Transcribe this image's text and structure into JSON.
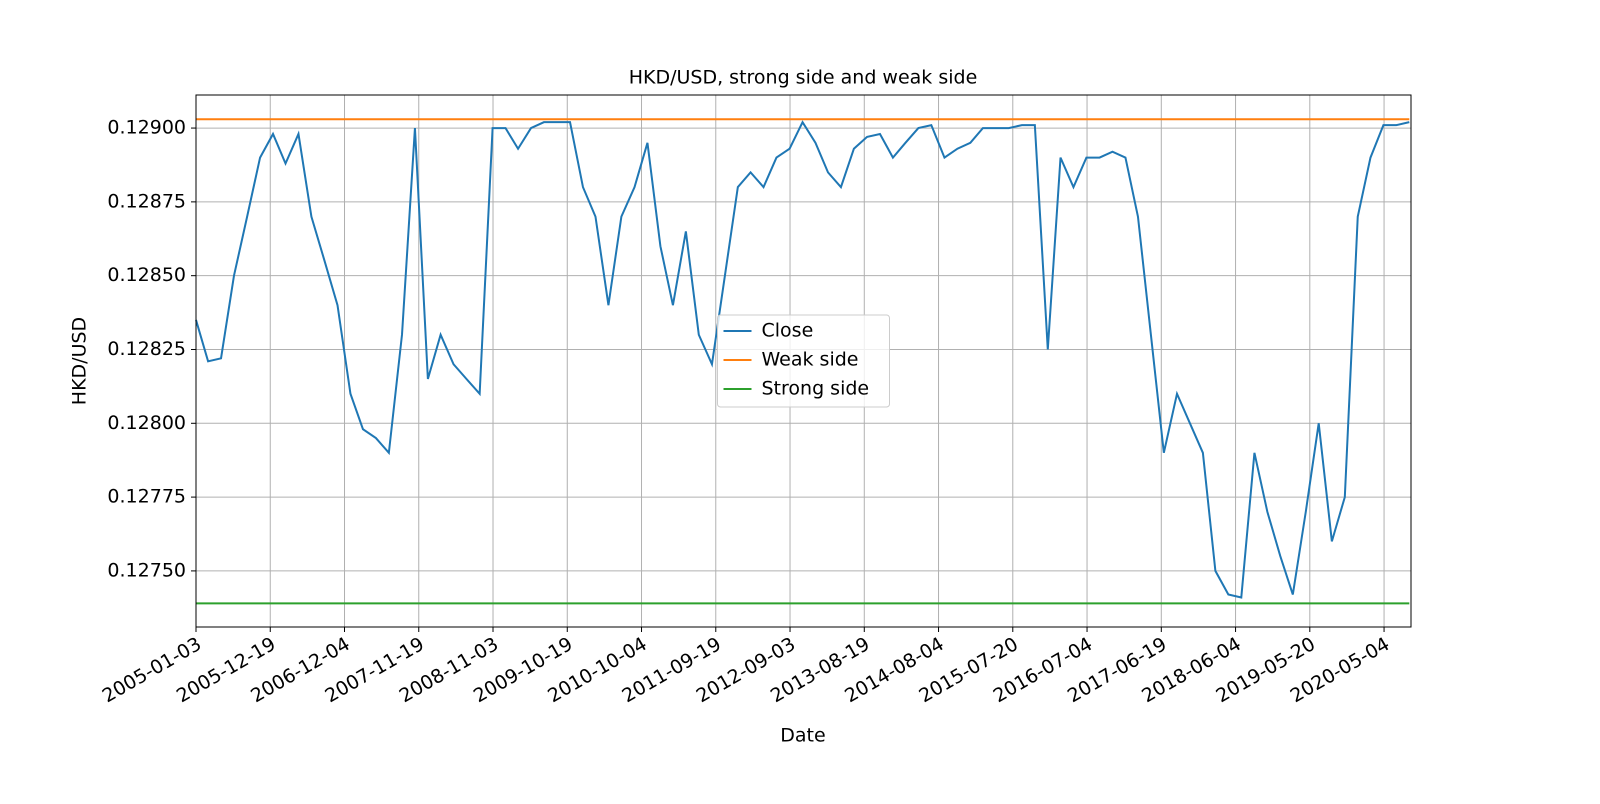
{
  "chart_data": {
    "type": "line",
    "title": "HKD/USD, strong side and weak side",
    "x_label": "Date",
    "y_label": "HKD/USD",
    "legend": "center",
    "grid": true,
    "xlim": [
      "2005-01-03",
      "2020-09-08"
    ],
    "xticks": [
      "2005-01-03",
      "2005-12-19",
      "2006-12-04",
      "2007-11-19",
      "2008-11-03",
      "2009-10-19",
      "2010-10-04",
      "2011-09-19",
      "2012-09-03",
      "2013-08-19",
      "2014-08-04",
      "2015-07-20",
      "2016-07-04",
      "2017-06-19",
      "2018-06-04",
      "2019-05-20",
      "2020-05-04"
    ],
    "ylim": [
      0.12731,
      0.129112
    ],
    "yticks": [
      {
        "value": 0.1275,
        "label": "0.12750"
      },
      {
        "value": 0.12775,
        "label": "0.12775"
      },
      {
        "value": 0.128,
        "label": "0.12800"
      },
      {
        "value": 0.12825,
        "label": "0.12825"
      },
      {
        "value": 0.1285,
        "label": "0.12850"
      },
      {
        "value": 0.12875,
        "label": "0.12875"
      },
      {
        "value": 0.129,
        "label": "0.12900"
      }
    ],
    "series": [
      {
        "name": "Close",
        "color": "#1f77b4",
        "x": [
          "2005-01-03",
          "2005-03-01",
          "2005-05-01",
          "2005-07-01",
          "2005-09-01",
          "2005-11-01",
          "2006-01-01",
          "2006-03-01",
          "2006-05-01",
          "2006-07-01",
          "2006-09-01",
          "2006-11-01",
          "2007-01-01",
          "2007-03-01",
          "2007-05-01",
          "2007-07-01",
          "2007-09-01",
          "2007-11-01",
          "2008-01-01",
          "2008-03-01",
          "2008-05-01",
          "2008-07-01",
          "2008-09-01",
          "2008-11-01",
          "2009-01-01",
          "2009-03-01",
          "2009-05-01",
          "2009-07-01",
          "2009-09-01",
          "2009-11-01",
          "2010-01-01",
          "2010-03-01",
          "2010-05-01",
          "2010-07-01",
          "2010-09-01",
          "2010-11-01",
          "2011-01-01",
          "2011-03-01",
          "2011-05-01",
          "2011-07-01",
          "2011-09-01",
          "2011-11-01",
          "2012-01-01",
          "2012-03-01",
          "2012-05-01",
          "2012-07-01",
          "2012-09-01",
          "2012-11-01",
          "2013-01-01",
          "2013-03-01",
          "2013-05-01",
          "2013-07-01",
          "2013-09-01",
          "2013-11-01",
          "2014-01-01",
          "2014-03-01",
          "2014-05-01",
          "2014-07-01",
          "2014-09-01",
          "2014-11-01",
          "2015-01-01",
          "2015-03-01",
          "2015-05-01",
          "2015-07-01",
          "2015-09-01",
          "2015-11-01",
          "2016-01-01",
          "2016-03-01",
          "2016-05-01",
          "2016-07-01",
          "2016-09-01",
          "2016-11-01",
          "2017-01-01",
          "2017-03-01",
          "2017-05-01",
          "2017-07-01",
          "2017-09-01",
          "2017-11-01",
          "2018-01-01",
          "2018-03-01",
          "2018-05-01",
          "2018-07-01",
          "2018-09-01",
          "2018-11-01",
          "2019-01-01",
          "2019-03-01",
          "2019-05-01",
          "2019-07-01",
          "2019-09-01",
          "2019-11-01",
          "2020-01-01",
          "2020-03-01",
          "2020-05-01",
          "2020-07-01",
          "2020-08-31"
        ],
        "values": [
          0.12835,
          0.12821,
          0.12822,
          0.1285,
          0.1287,
          0.1289,
          0.12898,
          0.12888,
          0.12898,
          0.1287,
          0.12855,
          0.1284,
          0.1281,
          0.12798,
          0.12795,
          0.1279,
          0.1283,
          0.129,
          0.12815,
          0.1283,
          0.1282,
          0.12815,
          0.1281,
          0.129,
          0.129,
          0.12893,
          0.129,
          0.12902,
          0.12902,
          0.12902,
          0.1288,
          0.1287,
          0.1284,
          0.1287,
          0.1288,
          0.12895,
          0.1286,
          0.1284,
          0.12865,
          0.1283,
          0.1282,
          0.1285,
          0.1288,
          0.12885,
          0.1288,
          0.1289,
          0.12893,
          0.12902,
          0.12895,
          0.12885,
          0.1288,
          0.12893,
          0.12897,
          0.12898,
          0.1289,
          0.12895,
          0.129,
          0.12901,
          0.1289,
          0.12893,
          0.12895,
          0.129,
          0.129,
          0.129,
          0.12901,
          0.12901,
          0.12825,
          0.1289,
          0.1288,
          0.1289,
          0.1289,
          0.12892,
          0.1289,
          0.1287,
          0.1283,
          0.1279,
          0.1281,
          0.128,
          0.1279,
          0.1275,
          0.12742,
          0.12741,
          0.1279,
          0.1277,
          0.12755,
          0.12742,
          0.1277,
          0.128,
          0.1276,
          0.12775,
          0.1287,
          0.1289,
          0.12901,
          0.12901,
          0.12902
        ]
      },
      {
        "name": "Weak side",
        "color": "#ff7f0e",
        "x": [
          "2005-01-03",
          "2020-08-31"
        ],
        "values": [
          0.12903,
          0.12903
        ]
      },
      {
        "name": "Strong side",
        "color": "#2ca02c",
        "x": [
          "2005-01-03",
          "2020-08-31"
        ],
        "values": [
          0.12739,
          0.12739
        ]
      }
    ]
  }
}
